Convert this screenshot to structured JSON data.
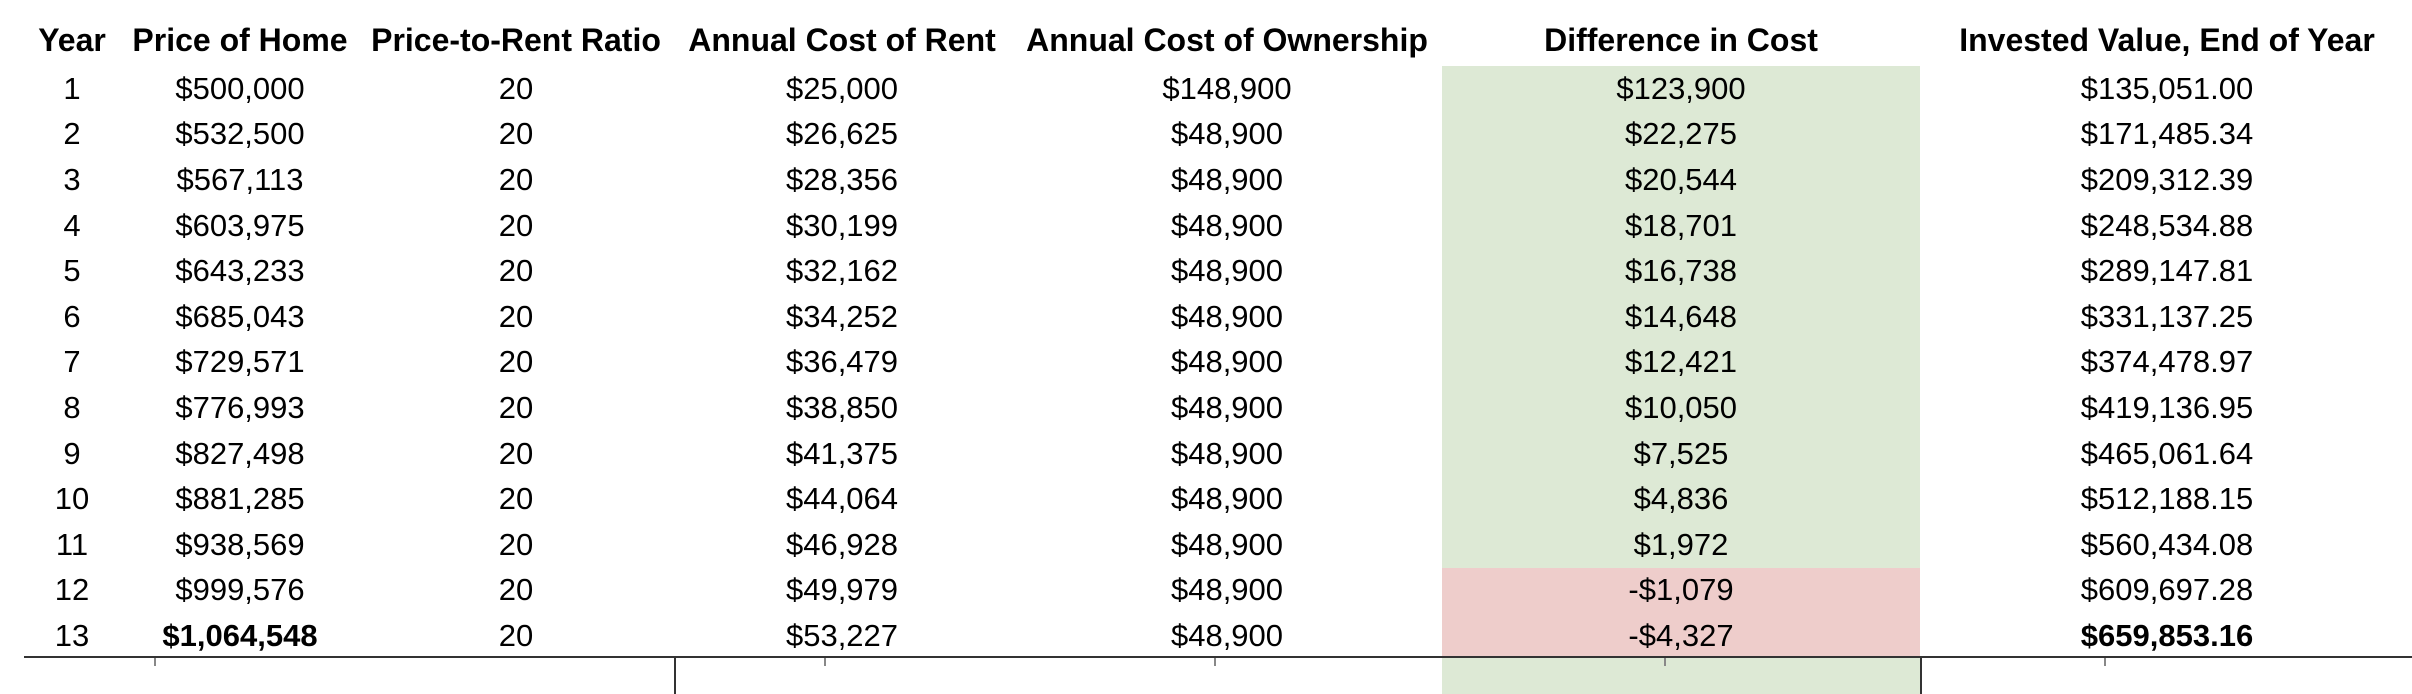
{
  "table": {
    "headers": [
      "Year",
      "Price of Home",
      "Price-to-Rent Ratio",
      "Annual Cost of Rent",
      "Annual Cost of Ownership",
      "Difference in Cost",
      "Invested Value, End of Year"
    ],
    "rows": [
      [
        "1",
        "$500,000",
        "20",
        "$25,000",
        "$148,900",
        "$123,900",
        "$135,051.00"
      ],
      [
        "2",
        "$532,500",
        "20",
        "$26,625",
        "$48,900",
        "$22,275",
        "$171,485.34"
      ],
      [
        "3",
        "$567,113",
        "20",
        "$28,356",
        "$48,900",
        "$20,544",
        "$209,312.39"
      ],
      [
        "4",
        "$603,975",
        "20",
        "$30,199",
        "$48,900",
        "$18,701",
        "$248,534.88"
      ],
      [
        "5",
        "$643,233",
        "20",
        "$32,162",
        "$48,900",
        "$16,738",
        "$289,147.81"
      ],
      [
        "6",
        "$685,043",
        "20",
        "$34,252",
        "$48,900",
        "$14,648",
        "$331,137.25"
      ],
      [
        "7",
        "$729,571",
        "20",
        "$36,479",
        "$48,900",
        "$12,421",
        "$374,478.97"
      ],
      [
        "8",
        "$776,993",
        "20",
        "$38,850",
        "$48,900",
        "$10,050",
        "$419,136.95"
      ],
      [
        "9",
        "$827,498",
        "20",
        "$41,375",
        "$48,900",
        "$7,525",
        "$465,061.64"
      ],
      [
        "10",
        "$881,285",
        "20",
        "$44,064",
        "$48,900",
        "$4,836",
        "$512,188.15"
      ],
      [
        "11",
        "$938,569",
        "20",
        "$46,928",
        "$48,900",
        "$1,972",
        "$560,434.08"
      ],
      [
        "12",
        "$999,576",
        "20",
        "$49,979",
        "$48,900",
        "-$1,079",
        "$609,697.28"
      ],
      [
        "13",
        "$1,064,548",
        "20",
        "$53,227",
        "$48,900",
        "-$4,327",
        "$659,853.16"
      ]
    ]
  },
  "colors": {
    "positive_fill": "#dde9d5",
    "negative_fill": "#eecdcb",
    "rule": "#333333"
  }
}
